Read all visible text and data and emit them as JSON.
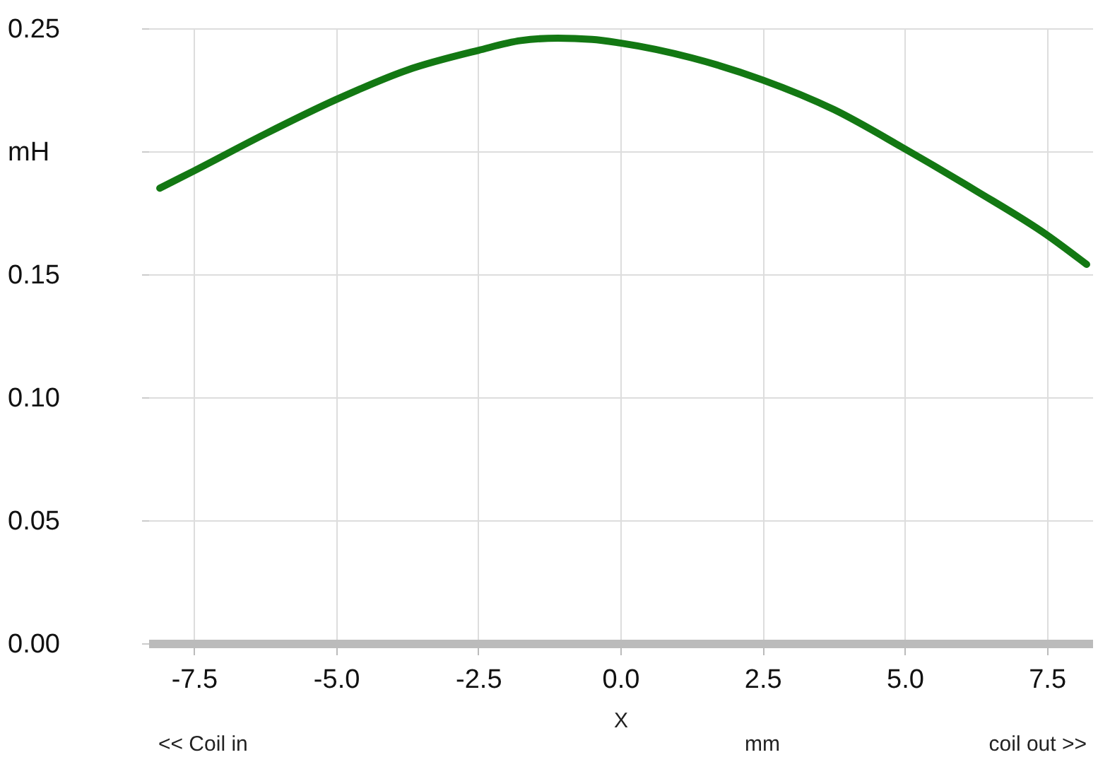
{
  "chart_data": {
    "type": "line",
    "xlabel": "X",
    "annotations": [
      "<< Coil in",
      "mm",
      "coil out >>"
    ],
    "x": [
      -8.1,
      -7.5,
      -6.25,
      -5,
      -3.75,
      -2.5,
      -1.75,
      -1.1,
      -0.5,
      0,
      1.25,
      2.5,
      3.75,
      5,
      6.25,
      7.5,
      8.2
    ],
    "series": [
      {
        "color": "#137813",
        "values": [
          0.185,
          0.192,
          0.207,
          0.221,
          0.233,
          0.241,
          0.245,
          0.246,
          0.2455,
          0.244,
          0.238,
          0.229,
          0.217,
          0.201,
          0.184,
          0.166,
          0.154
        ]
      }
    ],
    "xlim": [
      -8.3,
      8.3
    ],
    "xticks": [
      {
        "value": -7.5,
        "label": "-7.5"
      },
      {
        "value": -5,
        "label": "-5.0"
      },
      {
        "value": -2.5,
        "label": "-2.5"
      },
      {
        "value": 0,
        "label": "0.0"
      },
      {
        "value": 2.5,
        "label": "2.5"
      },
      {
        "value": 5,
        "label": "5.0"
      },
      {
        "value": 7.5,
        "label": "7.5"
      }
    ],
    "ylim": [
      0,
      0.25
    ],
    "yticks": [
      {
        "value": 0,
        "label": "0.00"
      },
      {
        "value": 0.05,
        "label": "0.05"
      },
      {
        "value": 0.1,
        "label": "0.10"
      },
      {
        "value": 0.15,
        "label": "0.15"
      },
      {
        "value": 0.2,
        "label": "mH"
      },
      {
        "value": 0.25,
        "label": "0.25"
      }
    ],
    "grid": true,
    "marker": "none",
    "line_style": "solid"
  }
}
